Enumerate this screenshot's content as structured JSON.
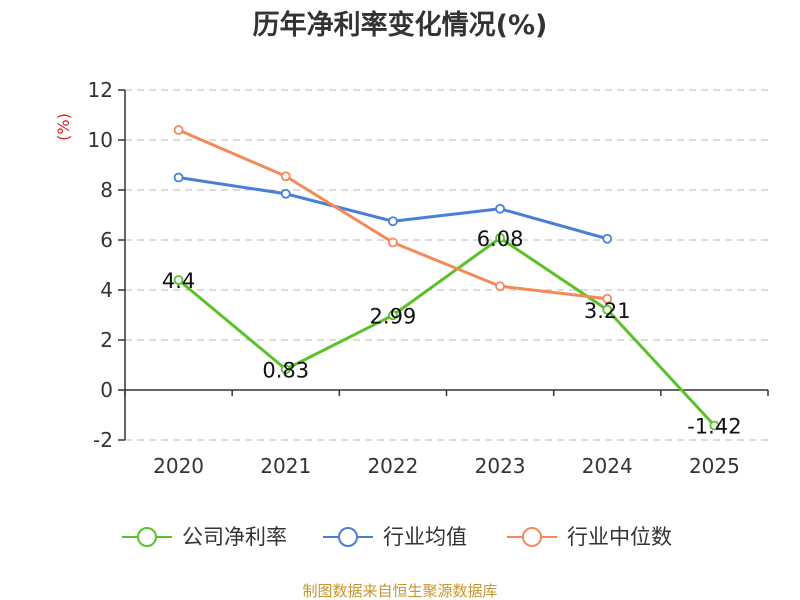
{
  "chart_data": {
    "type": "line",
    "title": "历年净利率变化情况(%)",
    "unit_label": "(%)",
    "categories": [
      "2020",
      "2021",
      "2022",
      "2023",
      "2024",
      "2025"
    ],
    "ylim": [
      -2,
      12
    ],
    "y_ticks": [
      -2,
      0,
      2,
      4,
      6,
      8,
      10,
      12
    ],
    "grid": true,
    "legend_position": "bottom",
    "series": [
      {
        "name": "公司净利率",
        "color": "#5ac12a",
        "values": [
          4.4,
          0.83,
          2.99,
          6.08,
          3.21,
          -1.42
        ],
        "labels": [
          "4.4",
          "0.83",
          "2.99",
          "6.08",
          "3.21",
          "-1.42"
        ],
        "show_labels": true
      },
      {
        "name": "行业均值",
        "color": "#4a7fd6",
        "values": [
          8.5,
          7.85,
          6.75,
          7.25,
          6.05,
          null
        ],
        "show_labels": false
      },
      {
        "name": "行业中位数",
        "color": "#f4895a",
        "values": [
          10.4,
          8.55,
          5.9,
          4.15,
          3.65,
          null
        ],
        "show_labels": false
      }
    ],
    "source": "制图数据来自恒生聚源数据库"
  }
}
